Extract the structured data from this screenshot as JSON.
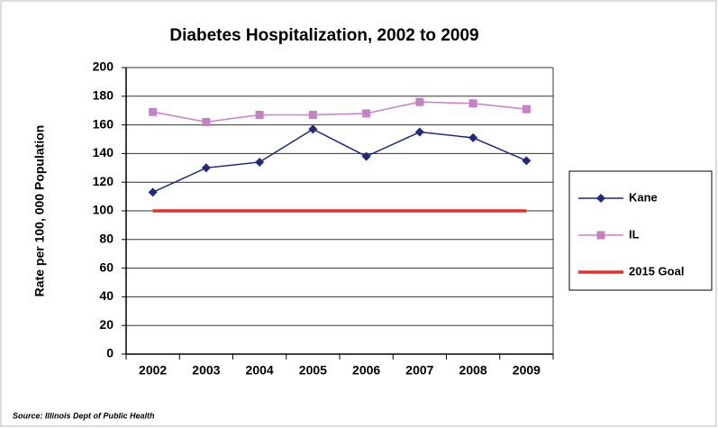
{
  "chart_data": {
    "type": "line",
    "title": "Diabetes Hospitalization, 2002 to 2009",
    "y_label": "Rate per 100, 000 Population",
    "source": "Source: Illinois Dept of Public Health",
    "categories": [
      "2002",
      "2003",
      "2004",
      "2005",
      "2006",
      "2007",
      "2008",
      "2009"
    ],
    "series": [
      {
        "name": "Kane",
        "color": "#1f2a80",
        "marker": "diamond",
        "values": [
          113,
          130,
          134,
          157,
          138,
          155,
          151,
          135
        ]
      },
      {
        "name": "IL",
        "color": "#c77fc7",
        "marker": "square",
        "values": [
          169,
          162,
          167,
          167,
          168,
          176,
          175,
          171
        ]
      },
      {
        "name": "2015 Goal",
        "color": "#e8302a",
        "marker": "none",
        "values": [
          100,
          100,
          100,
          100,
          100,
          100,
          100,
          100
        ]
      }
    ],
    "ylim": [
      0,
      200
    ],
    "yticks": [
      0,
      20,
      40,
      60,
      80,
      100,
      120,
      140,
      160,
      180,
      200
    ],
    "grid": true,
    "legend": "right"
  }
}
